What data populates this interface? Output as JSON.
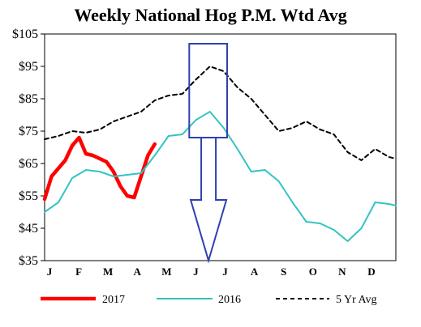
{
  "chart_data": {
    "type": "line",
    "title": "Weekly National Hog P.M. Wtd Avg",
    "xlabel": "",
    "ylabel": "",
    "ylim": [
      35,
      105
    ],
    "y_ticks": [
      "$35",
      "$45",
      "$55",
      "$65",
      "$75",
      "$85",
      "$95",
      "$105"
    ],
    "y_tick_values": [
      35,
      45,
      55,
      65,
      75,
      85,
      95,
      105
    ],
    "x_ticks": [
      "J",
      "F",
      "M",
      "A",
      "M",
      "J",
      "J",
      "A",
      "S",
      "O",
      "N",
      "D"
    ],
    "xlim": [
      1,
      52
    ],
    "x_unit": "week of year",
    "grid": false,
    "legend_position": "bottom",
    "series": [
      {
        "name": "2017",
        "color": "#ff0000",
        "style": "solid-thick",
        "x": [
          1,
          2,
          3,
          4,
          5,
          6,
          7,
          8,
          9,
          10,
          11,
          12,
          13,
          14,
          15,
          16,
          17,
          18,
          19,
          20,
          21,
          22
        ],
        "values": [
          54,
          61,
          63.5,
          66,
          70.5,
          73,
          68,
          67.5,
          66.5,
          65.5,
          62.5,
          58,
          55,
          54.5,
          61,
          67.5,
          71,
          null,
          null,
          null,
          null,
          null
        ]
      },
      {
        "name": "2016",
        "color": "#33c3c3",
        "style": "solid",
        "x": [
          1,
          3,
          5,
          7,
          9,
          11,
          13,
          15,
          17,
          19,
          21,
          23,
          25,
          27,
          29,
          31,
          33,
          35,
          37,
          39,
          41,
          43,
          45,
          47,
          49,
          51,
          52
        ],
        "values": [
          50,
          53,
          60.5,
          63,
          62.5,
          61,
          61.5,
          62,
          67.5,
          73.5,
          74,
          78.5,
          81,
          76,
          69.5,
          62.5,
          63,
          59.5,
          53,
          47,
          46.5,
          44.5,
          41,
          45,
          53,
          52.5,
          52
        ]
      },
      {
        "name": "5 Yr Avg",
        "color": "#000000",
        "style": "dashed",
        "x": [
          1,
          3,
          5,
          7,
          9,
          11,
          13,
          15,
          17,
          19,
          21,
          23,
          25,
          27,
          29,
          31,
          33,
          35,
          37,
          39,
          41,
          43,
          45,
          47,
          49,
          51,
          52
        ],
        "values": [
          72.5,
          73.5,
          75,
          74.5,
          75.5,
          78,
          79.5,
          81,
          84.5,
          86,
          86.5,
          91,
          95,
          93.5,
          88.5,
          85,
          80,
          75,
          76,
          78,
          75.5,
          74,
          68.5,
          66,
          69.5,
          67,
          66.5
        ]
      }
    ],
    "annotations": [
      {
        "type": "rectangle",
        "color": "#3040b0",
        "x_range": [
          22,
          27.5
        ],
        "y_range": [
          73,
          102
        ]
      },
      {
        "type": "down-arrow",
        "color": "#3040b0",
        "x": 24.8,
        "from_y": 73,
        "to_y": 35
      }
    ]
  }
}
